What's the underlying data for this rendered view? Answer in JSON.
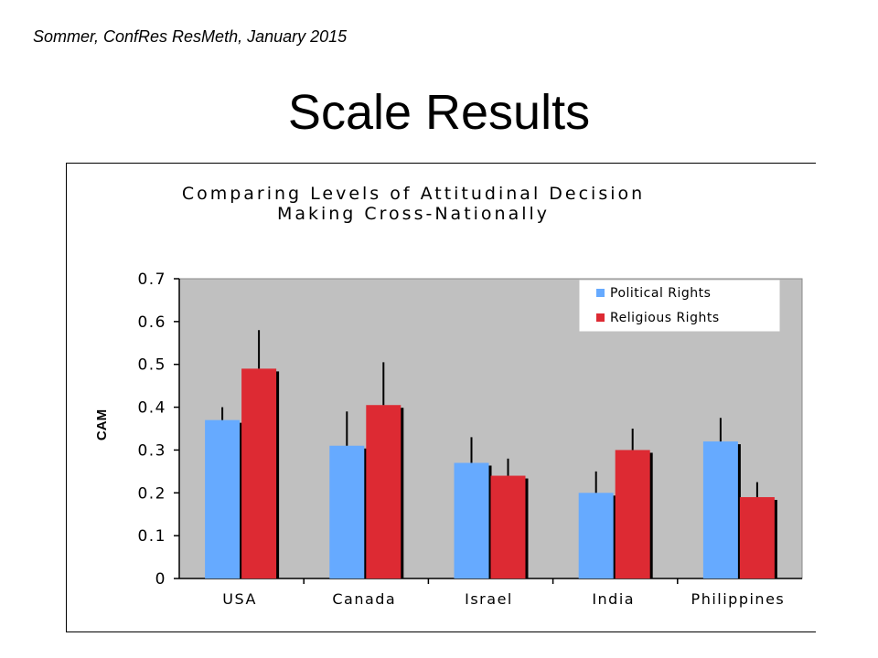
{
  "slide": {
    "footer_note": "Sommer, ConfRes ResMeth, January 2015",
    "title": "Scale Results"
  },
  "chart_data": {
    "type": "bar",
    "title_lines": [
      "Comparing Levels of Attitudinal Decision",
      "Making Cross-Nationally"
    ],
    "ylabel": "CAM",
    "xlabel": "",
    "ylim": [
      0,
      0.7
    ],
    "yticks": [
      "0",
      "0.1",
      "0.2",
      "0.3",
      "0.4",
      "0.5",
      "0.6",
      "0.7"
    ],
    "categories": [
      "USA",
      "Canada",
      "Israel",
      "India",
      "Philippines"
    ],
    "series": [
      {
        "name": "Political Rights",
        "color": "#66aaff",
        "values": [
          0.37,
          0.31,
          0.27,
          0.2,
          0.32
        ],
        "errors": [
          0.03,
          0.08,
          0.06,
          0.05,
          0.055
        ]
      },
      {
        "name": "Religious Rights",
        "color": "#dd2a33",
        "values": [
          0.49,
          0.405,
          0.24,
          0.3,
          0.19
        ],
        "errors": [
          0.09,
          0.1,
          0.04,
          0.05,
          0.035
        ]
      }
    ],
    "plot_background": "#c0c0c0",
    "grid": false,
    "legend_position": "top-right"
  }
}
